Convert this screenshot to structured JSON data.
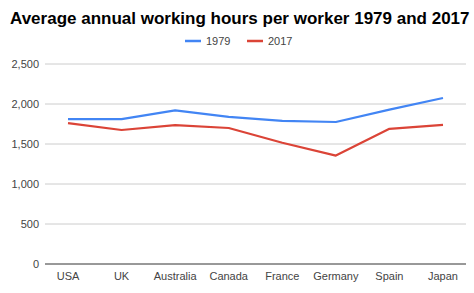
{
  "chart_data": {
    "type": "line",
    "title": "Average annual working hours per worker 1979 and 2017",
    "categories": [
      "USA",
      "UK",
      "Australia",
      "Canada",
      "France",
      "Germany",
      "Spain",
      "Japan"
    ],
    "series": [
      {
        "name": "1979",
        "color": "#4285f4",
        "values": [
          1810,
          1810,
          1920,
          1840,
          1790,
          1775,
          1930,
          2075
        ]
      },
      {
        "name": "2017",
        "color": "#db4437",
        "values": [
          1760,
          1675,
          1735,
          1700,
          1515,
          1355,
          1690,
          1740
        ]
      }
    ],
    "ylim": [
      0,
      2500
    ],
    "yticks": [
      0,
      500,
      {
        "value": 1000,
        "label": "1,000"
      },
      {
        "value": 1500,
        "label": "1,500"
      },
      {
        "value": 2000,
        "label": "2,000"
      },
      {
        "value": 2500,
        "label": "2,500"
      }
    ],
    "grid": true,
    "legend": "top"
  }
}
